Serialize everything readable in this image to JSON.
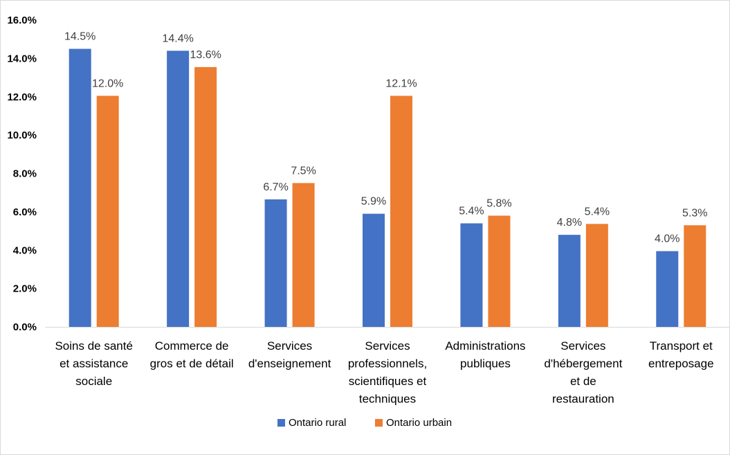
{
  "chart_data": {
    "type": "bar",
    "title": "",
    "xlabel": "",
    "ylabel": "",
    "ylim": [
      0,
      16
    ],
    "yticks": [
      0,
      2,
      4,
      6,
      8,
      10,
      12,
      14,
      16
    ],
    "ytick_labels": [
      "0.0%",
      "2.0%",
      "4.0%",
      "6.0%",
      "8.0%",
      "10.0%",
      "12.0%",
      "14.0%",
      "16.0%"
    ],
    "grid": false,
    "legend_position": "bottom",
    "categories": [
      [
        "Soins de santé",
        "et assistance",
        "sociale"
      ],
      [
        "Commerce de",
        "gros et de détail"
      ],
      [
        "Services",
        "d'enseignement"
      ],
      [
        "Services",
        "professionnels,",
        "scientifiques et",
        "techniques"
      ],
      [
        "Administrations",
        "publiques"
      ],
      [
        "Services",
        "d'hébergement",
        "et de",
        "restauration"
      ],
      [
        "Transport et",
        "entreposage"
      ]
    ],
    "series": [
      {
        "name": "Ontario rural",
        "color": "#4472C4",
        "values": [
          14.5,
          14.4,
          6.65,
          5.9,
          5.4,
          4.8,
          3.95
        ],
        "labels": [
          "14.5%",
          "14.4%",
          "6.7%",
          "5.9%",
          "5.4%",
          "4.8%",
          "4.0%"
        ]
      },
      {
        "name": "Ontario urbain",
        "color": "#ED7D31",
        "values": [
          12.05,
          13.55,
          7.5,
          12.05,
          5.8,
          5.37,
          5.3
        ],
        "labels": [
          "12.0%",
          "13.6%",
          "7.5%",
          "12.1%",
          "5.8%",
          "5.4%",
          "5.3%"
        ]
      }
    ]
  }
}
